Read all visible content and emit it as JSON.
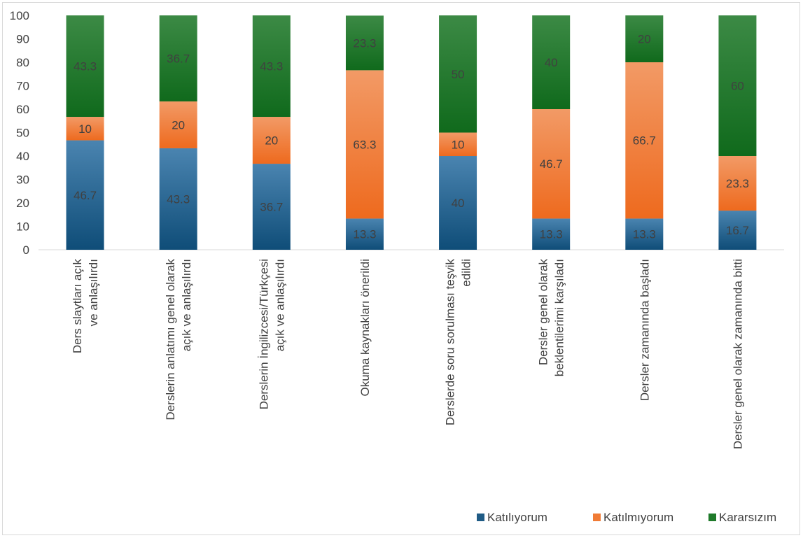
{
  "chart_data": {
    "type": "bar",
    "stacked": true,
    "orientation": "vertical",
    "categories": [
      [
        "Ders slaytları açık",
        "ve anlaşılırdı"
      ],
      [
        "Derslerin anlatımı genel olarak",
        "açık ve anlaşılırdı"
      ],
      [
        "Derslerin İngilizcesi/Türkçesi",
        "açık ve anlaşılırdı"
      ],
      [
        "Okuma kaynakları önerildi"
      ],
      [
        "Derslerde soru sorulması teşvik",
        "edildi"
      ],
      [
        "Dersler genel olarak",
        "beklentilerimi karşıladı"
      ],
      [
        "Dersler zamanında başladı"
      ],
      [
        "Dersler genel olarak zamanında bitti"
      ]
    ],
    "series": [
      {
        "name": "Katılıyorum",
        "color": "#1f5b85",
        "values": [
          46.7,
          43.3,
          36.7,
          13.3,
          40,
          13.3,
          13.3,
          16.7
        ],
        "labels": [
          "46.7",
          "43.3",
          "36.7",
          "13.3",
          "40",
          "13.3",
          "13.3",
          "16.7"
        ]
      },
      {
        "name": "Katılmıyorum",
        "color": "#f07b35",
        "values": [
          10,
          20,
          20,
          63.3,
          10,
          46.7,
          66.7,
          23.3
        ],
        "labels": [
          "10",
          "20",
          "20",
          "63.3",
          "10",
          "46.7",
          "66.7",
          "23.3"
        ]
      },
      {
        "name": "Kararsızım",
        "color": "#1f7a2a",
        "values": [
          43.3,
          36.7,
          43.3,
          23.3,
          50,
          40,
          20,
          60
        ],
        "labels": [
          "43.3",
          "36.7",
          "43.3",
          "23.3",
          "50",
          "40",
          "20",
          "60"
        ]
      }
    ],
    "ylim": [
      0,
      100
    ],
    "yticks": [
      "0",
      "10",
      "20",
      "30",
      "40",
      "50",
      "60",
      "70",
      "80",
      "90",
      "100"
    ],
    "grid": false,
    "legend_position": "bottom-right"
  }
}
